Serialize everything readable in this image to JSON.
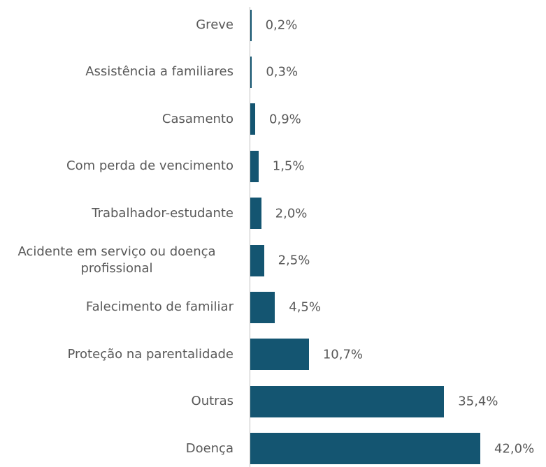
{
  "chart_data": {
    "type": "bar",
    "orientation": "horizontal",
    "categories": [
      "Greve",
      "Assistência a familiares",
      "Casamento",
      "Com perda de vencimento",
      "Trabalhador-estudante",
      "Acidente em serviço ou doença profissional",
      "Falecimento de familiar",
      "Proteção na parentalidade",
      "Outras",
      "Doença"
    ],
    "values": [
      0.2,
      0.3,
      0.9,
      1.5,
      2.0,
      2.5,
      4.5,
      10.7,
      35.4,
      42.0
    ],
    "value_labels": [
      "0,2%",
      "0,3%",
      "0,9%",
      "1,5%",
      "2,0%",
      "2,5%",
      "4,5%",
      "10,7%",
      "35,4%",
      "42,0%"
    ],
    "color": "#145571"
  }
}
